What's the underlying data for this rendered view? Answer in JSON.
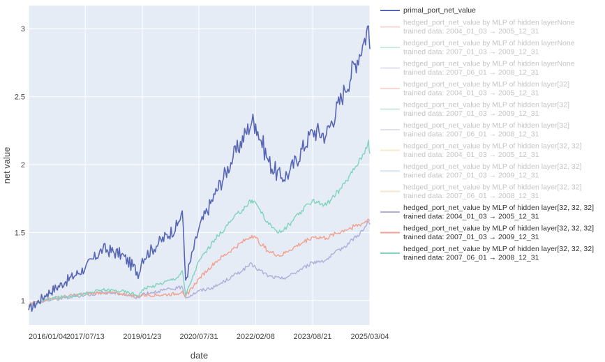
{
  "chart_data": {
    "type": "line",
    "title": "",
    "xlabel": "date",
    "ylabel": "net value",
    "x_ticks": [
      "2016/01/04",
      "2017/07/13",
      "2019/01/23",
      "2020/07/31",
      "2022/02/08",
      "2023/08/21",
      "2025/03/04"
    ],
    "xlim": [
      "2016/01/04",
      "2025/03/04"
    ],
    "y_ticks": [
      "1",
      "1.5",
      "2",
      "2.5",
      "3"
    ],
    "ylim": [
      0.82,
      3.17
    ],
    "grid": true,
    "legend_position": "right",
    "x_dates": [
      "2016/01/04",
      "2016/07/01",
      "2017/01/02",
      "2017/07/13",
      "2018/01/02",
      "2018/07/02",
      "2018/12/24",
      "2019/01/23",
      "2019/07/01",
      "2020/01/02",
      "2020/02/19",
      "2020/03/23",
      "2020/07/31",
      "2021/01/04",
      "2021/07/01",
      "2022/01/03",
      "2022/02/08",
      "2022/06/16",
      "2022/10/12",
      "2023/01/03",
      "2023/08/21",
      "2024/01/02",
      "2024/07/01",
      "2025/01/02",
      "2025/02/19",
      "2025/03/04"
    ],
    "series": [
      {
        "name": "primal_port_net_value",
        "color": "#5765b5",
        "opacity": 1,
        "values": [
          0.93,
          1.05,
          1.14,
          1.24,
          1.38,
          1.34,
          1.2,
          1.31,
          1.42,
          1.55,
          1.66,
          1.15,
          1.53,
          1.78,
          2.05,
          2.32,
          2.3,
          2.02,
          1.9,
          1.94,
          2.25,
          2.22,
          2.55,
          2.9,
          3.02,
          2.85
        ]
      },
      {
        "name": "hedged_port_net_value by MLP of hidden layerNone",
        "sub": "trained data: 2004_01_03 → 2005_12_31",
        "color": "#f3b7a9",
        "opacity": 1,
        "values": []
      },
      {
        "name": "hedged_port_net_value by MLP of hidden layerNone",
        "sub": "trained data: 2007_01_03 → 2009_12_31",
        "color": "#9fd9cb",
        "opacity": 1,
        "values": []
      },
      {
        "name": "hedged_port_net_value by MLP of hidden layerNone",
        "sub": "trained data: 2007_06_01 → 2008_12_31",
        "color": "#c9c8e6",
        "opacity": 1,
        "values": []
      },
      {
        "name": "hedged_port_net_value by MLP of hidden layer[32]",
        "sub": "trained data: 2004_01_03 → 2005_12_31",
        "color": "#f3b7a9",
        "opacity": 1,
        "values": []
      },
      {
        "name": "hedged_port_net_value by MLP of hidden layer[32]",
        "sub": "trained data: 2007_01_03 → 2009_12_31",
        "color": "#9fd9cb",
        "opacity": 1,
        "values": []
      },
      {
        "name": "hedged_port_net_value by MLP of hidden layer[32]",
        "sub": "trained data: 2007_06_01 → 2008_12_31",
        "color": "#c9c8e6",
        "opacity": 1,
        "values": []
      },
      {
        "name": "hedged_port_net_value by MLP of hidden layer[32, 32]",
        "sub": "trained data: 2004_01_03 → 2005_12_31",
        "color": "#f3d6a0",
        "opacity": 1,
        "values": []
      },
      {
        "name": "hedged_port_net_value by MLP of hidden layer[32, 32]",
        "sub": "trained data: 2007_01_03 → 2009_12_31",
        "color": "#b9d4e8",
        "opacity": 1,
        "values": []
      },
      {
        "name": "hedged_port_net_value by MLP of hidden layer[32, 32]",
        "sub": "trained data: 2007_06_01 → 2008_12_31",
        "color": "#f0d2a2",
        "opacity": 1,
        "values": []
      },
      {
        "name": "hedged_port_net_value by MLP of hidden layer[32, 32, 32]",
        "sub": "trained data: 2004_01_03 → 2005_12_31",
        "color": "#aeaedb",
        "opacity": 1,
        "values": [
          0.96,
          1.0,
          1.02,
          1.04,
          1.06,
          1.05,
          1.02,
          1.05,
          1.07,
          1.09,
          1.1,
          1.02,
          1.07,
          1.1,
          1.18,
          1.27,
          1.24,
          1.18,
          1.16,
          1.18,
          1.28,
          1.3,
          1.4,
          1.52,
          1.58,
          1.56
        ]
      },
      {
        "name": "hedged_port_net_value by MLP of hidden layer[32, 32, 32]",
        "sub": "trained data: 2007_01_03 → 2009_12_31",
        "color": "#f2a08f",
        "opacity": 1,
        "values": [
          0.97,
          1.01,
          1.03,
          1.05,
          1.06,
          1.05,
          1.03,
          1.04,
          1.04,
          1.05,
          1.07,
          1.03,
          1.16,
          1.28,
          1.38,
          1.48,
          1.46,
          1.36,
          1.33,
          1.37,
          1.47,
          1.46,
          1.52,
          1.57,
          1.6,
          1.59
        ]
      },
      {
        "name": "hedged_port_net_value by MLP of hidden layer[32, 32, 32]",
        "sub": "trained data: 2007_06_01 → 2008_12_31",
        "color": "#7fd3bd",
        "opacity": 1,
        "values": [
          0.96,
          1.01,
          1.03,
          1.05,
          1.08,
          1.07,
          1.04,
          1.08,
          1.12,
          1.17,
          1.22,
          1.04,
          1.29,
          1.45,
          1.6,
          1.74,
          1.72,
          1.56,
          1.5,
          1.56,
          1.74,
          1.7,
          1.86,
          2.08,
          2.18,
          2.08
        ]
      }
    ]
  }
}
